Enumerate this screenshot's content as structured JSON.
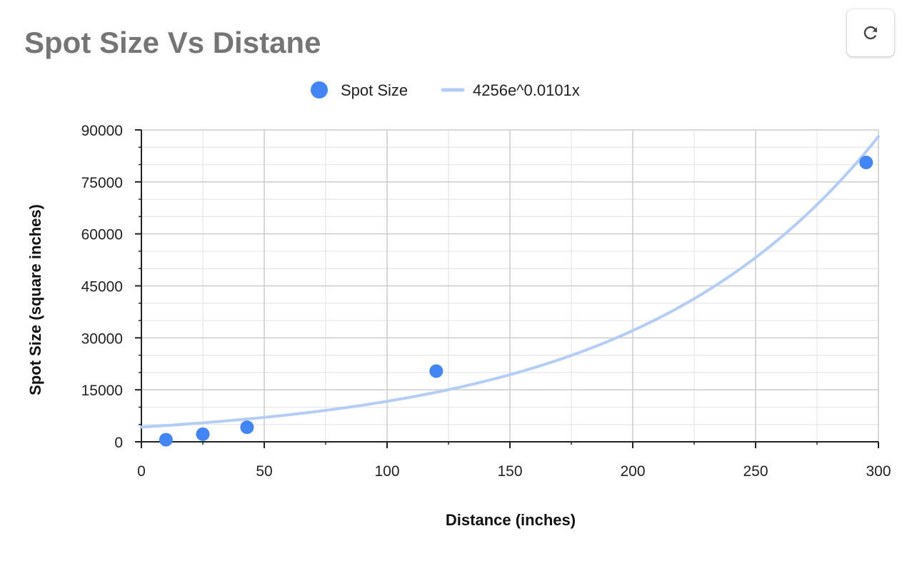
{
  "header": {
    "title": "Spot Size Vs Distane",
    "refresh_icon": "refresh-icon"
  },
  "colors": {
    "title": "#757575",
    "point": "#4285f4",
    "trendline": "#b3cdf7",
    "grid_major": "#cccccc",
    "grid_minor": "#e6e6e6",
    "axis": "#222222"
  },
  "chart_data": {
    "type": "scatter",
    "title": "Spot Size Vs Distane",
    "xlabel": "Distance (inches)",
    "ylabel": "Spot Size (square inches)",
    "xlim": [
      0,
      300
    ],
    "ylim": [
      0,
      90000
    ],
    "x_ticks": [
      0,
      50,
      100,
      150,
      200,
      250,
      300
    ],
    "y_ticks": [
      0,
      15000,
      30000,
      45000,
      60000,
      75000,
      90000
    ],
    "x_tick_labels": [
      "0",
      "50",
      "100",
      "150",
      "200",
      "250",
      "300"
    ],
    "y_tick_labels": [
      "0",
      "15000",
      "30000",
      "45000",
      "60000",
      "75000",
      "90000"
    ],
    "grid": true,
    "legend_position": "top",
    "series": [
      {
        "name": "Spot Size",
        "x": [
          10,
          25,
          43,
          120,
          295
        ],
        "y": [
          600,
          2200,
          4200,
          20400,
          80600
        ]
      }
    ],
    "trendline": {
      "label": "4256e^0.0101x",
      "a": 4256,
      "b": 0.0101,
      "x_range": [
        0,
        300
      ]
    }
  }
}
